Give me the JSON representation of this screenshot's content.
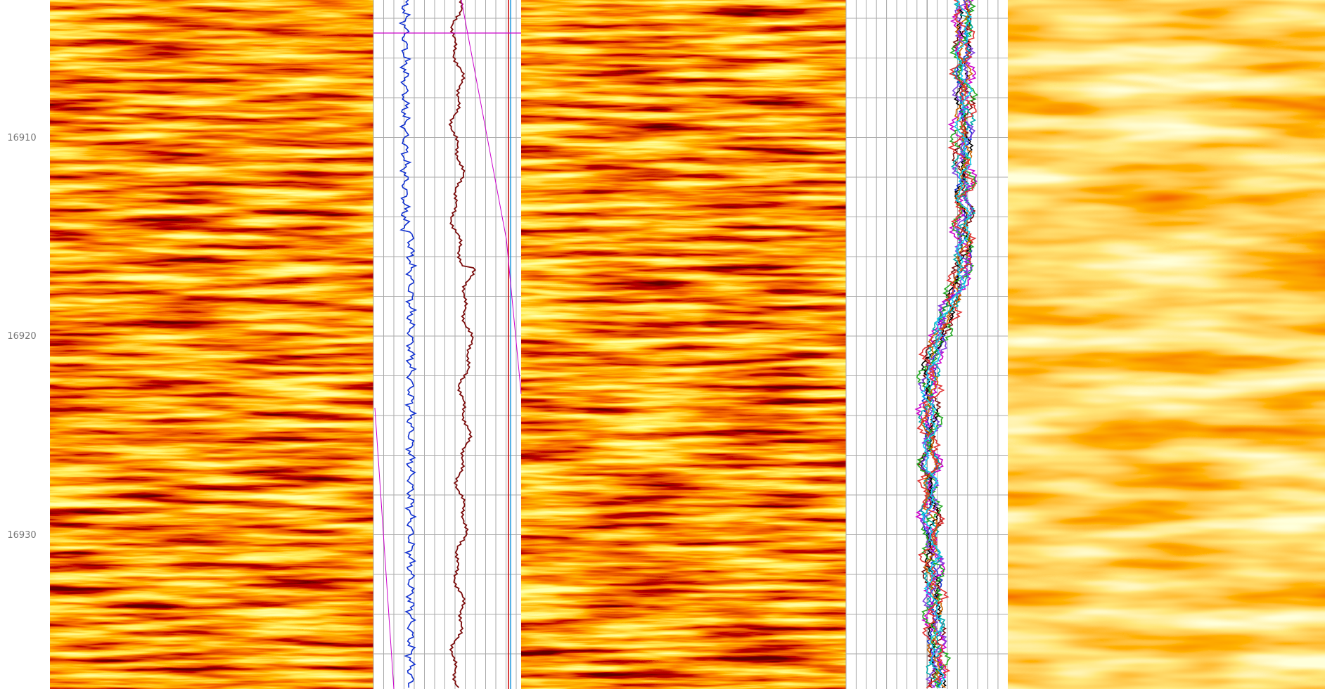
{
  "depth_track": {
    "labels": [
      "16910",
      "16920",
      "16930"
    ]
  }
}
